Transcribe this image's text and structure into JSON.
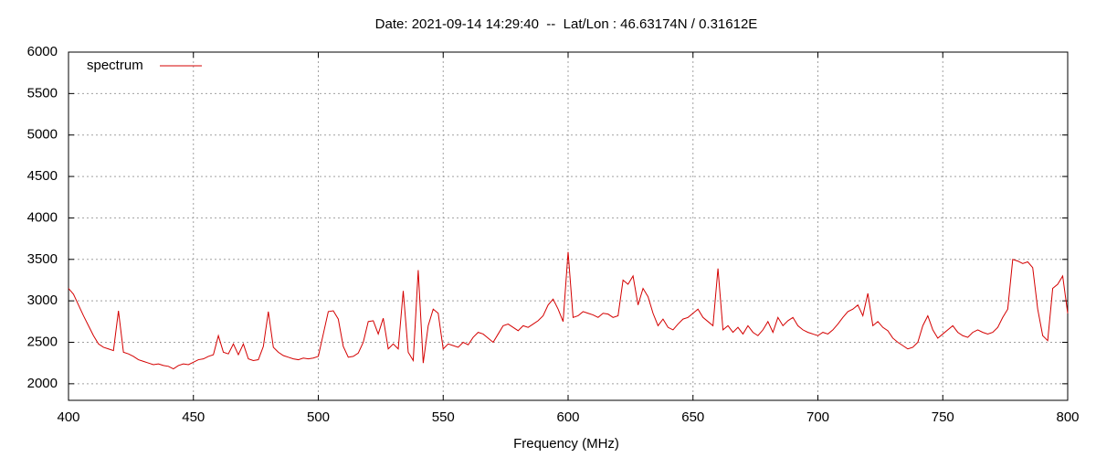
{
  "chart_data": {
    "type": "line",
    "title": "Date: 2021-09-14 14:29:40  --  Lat/Lon : 46.63174N / 0.31612E",
    "x_label": "Frequency (MHz)",
    "legend": "top-left",
    "grid": true,
    "xlim": [
      400,
      800
    ],
    "xticks": [
      400,
      450,
      500,
      550,
      600,
      650,
      700,
      750,
      800
    ],
    "ylim": [
      1800,
      6000
    ],
    "yticks": [
      2000,
      2500,
      3000,
      3500,
      4000,
      4500,
      5000,
      5500,
      6000
    ],
    "x": [
      400,
      402,
      404,
      406,
      408,
      410,
      412,
      414,
      416,
      418,
      420,
      422,
      424,
      426,
      428,
      430,
      432,
      434,
      436,
      438,
      440,
      442,
      444,
      446,
      448,
      450,
      452,
      454,
      456,
      458,
      460,
      462,
      464,
      466,
      468,
      470,
      472,
      474,
      476,
      478,
      480,
      482,
      484,
      486,
      488,
      490,
      492,
      494,
      496,
      498,
      500,
      502,
      504,
      506,
      508,
      510,
      512,
      514,
      516,
      518,
      520,
      522,
      524,
      526,
      528,
      530,
      532,
      534,
      536,
      538,
      540,
      542,
      544,
      546,
      548,
      550,
      552,
      554,
      556,
      558,
      560,
      562,
      564,
      566,
      568,
      570,
      572,
      574,
      576,
      578,
      580,
      582,
      584,
      586,
      588,
      590,
      592,
      594,
      596,
      598,
      600,
      602,
      604,
      606,
      608,
      610,
      612,
      614,
      616,
      618,
      620,
      622,
      624,
      626,
      628,
      630,
      632,
      634,
      636,
      638,
      640,
      642,
      644,
      646,
      648,
      650,
      652,
      654,
      656,
      658,
      660,
      662,
      664,
      666,
      668,
      670,
      672,
      674,
      676,
      678,
      680,
      682,
      684,
      686,
      688,
      690,
      692,
      694,
      696,
      698,
      700,
      702,
      704,
      706,
      708,
      710,
      712,
      714,
      716,
      718,
      720,
      722,
      724,
      726,
      728,
      730,
      732,
      734,
      736,
      738,
      740,
      742,
      744,
      746,
      748,
      750,
      752,
      754,
      756,
      758,
      760,
      762,
      764,
      766,
      768,
      770,
      772,
      774,
      776,
      778,
      780,
      782,
      784,
      786,
      788,
      790,
      792,
      794,
      796,
      798,
      800
    ],
    "series": [
      {
        "name": "spectrum",
        "color": "#d40000",
        "values": [
          3150,
          3080,
          2950,
          2820,
          2700,
          2580,
          2480,
          2440,
          2420,
          2400,
          2880,
          2380,
          2360,
          2330,
          2290,
          2270,
          2250,
          2230,
          2240,
          2220,
          2210,
          2180,
          2220,
          2240,
          2230,
          2260,
          2290,
          2300,
          2330,
          2350,
          2580,
          2380,
          2360,
          2480,
          2350,
          2480,
          2300,
          2280,
          2290,
          2450,
          2870,
          2440,
          2380,
          2340,
          2320,
          2300,
          2290,
          2310,
          2300,
          2310,
          2330,
          2600,
          2870,
          2880,
          2780,
          2450,
          2320,
          2330,
          2370,
          2500,
          2750,
          2760,
          2600,
          2790,
          2420,
          2480,
          2420,
          3120,
          2380,
          2280,
          3370,
          2250,
          2700,
          2900,
          2850,
          2420,
          2480,
          2460,
          2440,
          2500,
          2470,
          2560,
          2620,
          2600,
          2550,
          2500,
          2600,
          2700,
          2720,
          2680,
          2640,
          2700,
          2680,
          2720,
          2760,
          2820,
          2950,
          3020,
          2900,
          2750,
          3590,
          2800,
          2820,
          2870,
          2850,
          2830,
          2800,
          2850,
          2840,
          2800,
          2820,
          3250,
          3200,
          3300,
          2950,
          3150,
          3050,
          2850,
          2700,
          2780,
          2680,
          2650,
          2720,
          2780,
          2800,
          2850,
          2900,
          2800,
          2750,
          2700,
          3390,
          2650,
          2700,
          2620,
          2680,
          2600,
          2700,
          2620,
          2580,
          2650,
          2750,
          2620,
          2800,
          2700,
          2760,
          2800,
          2700,
          2650,
          2620,
          2600,
          2580,
          2620,
          2600,
          2650,
          2720,
          2800,
          2870,
          2900,
          2950,
          2820,
          3090,
          2700,
          2750,
          2680,
          2640,
          2550,
          2500,
          2460,
          2420,
          2440,
          2500,
          2700,
          2820,
          2650,
          2550,
          2600,
          2650,
          2700,
          2620,
          2580,
          2560,
          2620,
          2650,
          2620,
          2600,
          2620,
          2680,
          2800,
          2900,
          3500,
          3480,
          3450,
          3470,
          3400,
          2900,
          2580,
          2520,
          3150,
          3200,
          3300,
          2850
        ]
      }
    ]
  }
}
